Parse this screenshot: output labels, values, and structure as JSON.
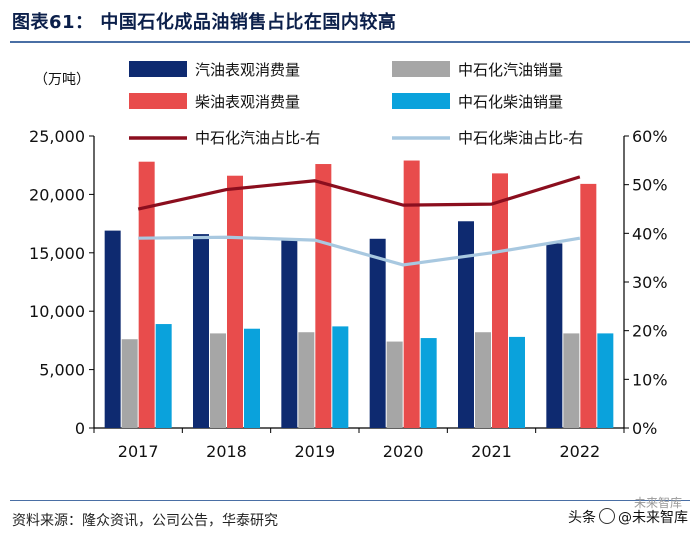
{
  "title": "图表61： 中国石化成品油销售占比在国内较高",
  "y_unit": "（万吨）",
  "source": "资料来源：隆众资讯，公司公告，华泰研究",
  "watermark": {
    "brand": "头条",
    "handle": "@未来智库",
    "sub": "未来智库"
  },
  "chart_data": {
    "type": "bar",
    "categories": [
      "2017",
      "2018",
      "2019",
      "2020",
      "2021",
      "2022"
    ],
    "ylim": [
      0,
      25000
    ],
    "y_ticks": [
      "0",
      "5,000",
      "10,000",
      "15,000",
      "20,000",
      "25,000"
    ],
    "y2lim": [
      0,
      60
    ],
    "y2_ticks": [
      "0%",
      "10%",
      "20%",
      "30%",
      "40%",
      "50%",
      "60%"
    ],
    "series": [
      {
        "name": "汽油表观消费量",
        "type": "bar",
        "axis": "left",
        "color": "#0e2a70",
        "values": [
          16900,
          16600,
          16100,
          16200,
          17700,
          15800
        ]
      },
      {
        "name": "中石化汽油销量",
        "type": "bar",
        "axis": "left",
        "color": "#a6a6a6",
        "values": [
          7600,
          8100,
          8200,
          7400,
          8200,
          8100
        ]
      },
      {
        "name": "柴油表观消费量",
        "type": "bar",
        "axis": "left",
        "color": "#e84c4c",
        "values": [
          22800,
          21600,
          22600,
          22900,
          21800,
          20900
        ]
      },
      {
        "name": "中石化柴油销量",
        "type": "bar",
        "axis": "left",
        "color": "#0aa2dc",
        "values": [
          8900,
          8500,
          8700,
          7700,
          7800,
          8100
        ]
      },
      {
        "name": "中石化汽油占比-右",
        "type": "line",
        "axis": "right",
        "color": "#8b0e1e",
        "values": [
          45,
          49,
          50.8,
          45.8,
          46,
          51.6
        ]
      },
      {
        "name": "中石化柴油占比-右",
        "type": "line",
        "axis": "right",
        "color": "#a8c8e0",
        "values": [
          39,
          39.2,
          38.6,
          33.5,
          36,
          39
        ]
      }
    ]
  }
}
